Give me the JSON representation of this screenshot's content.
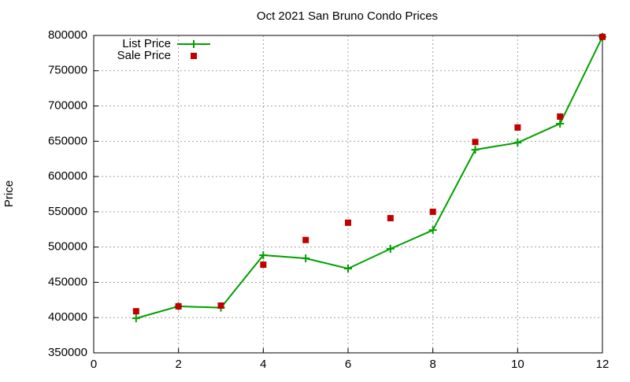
{
  "chart_data": {
    "type": "line",
    "title": "Oct 2021 San Bruno Condo Prices",
    "ylabel": "Price",
    "x": [
      1,
      2,
      3,
      4,
      5,
      6,
      7,
      8,
      9,
      10,
      11,
      12
    ],
    "series": [
      {
        "name": "List Price",
        "color": "#00a000",
        "style": "linepoints",
        "values": [
          399000,
          416000,
          414000,
          488500,
          484000,
          469500,
          497500,
          524000,
          638000,
          648000,
          675000,
          798000
        ]
      },
      {
        "name": "Sale Price",
        "color": "#c00000",
        "style": "points",
        "values": [
          409000,
          416000,
          417000,
          475000,
          510000,
          534500,
          541000,
          550000,
          649000,
          669500,
          685000,
          798000
        ]
      }
    ],
    "xlim": [
      0,
      12
    ],
    "xticks": [
      0,
      2,
      4,
      6,
      8,
      10,
      12
    ],
    "ylim": [
      350000,
      800000
    ],
    "yticks": [
      350000,
      400000,
      450000,
      500000,
      550000,
      600000,
      650000,
      700000,
      750000,
      800000
    ],
    "grid": true,
    "legend": "top-left"
  }
}
